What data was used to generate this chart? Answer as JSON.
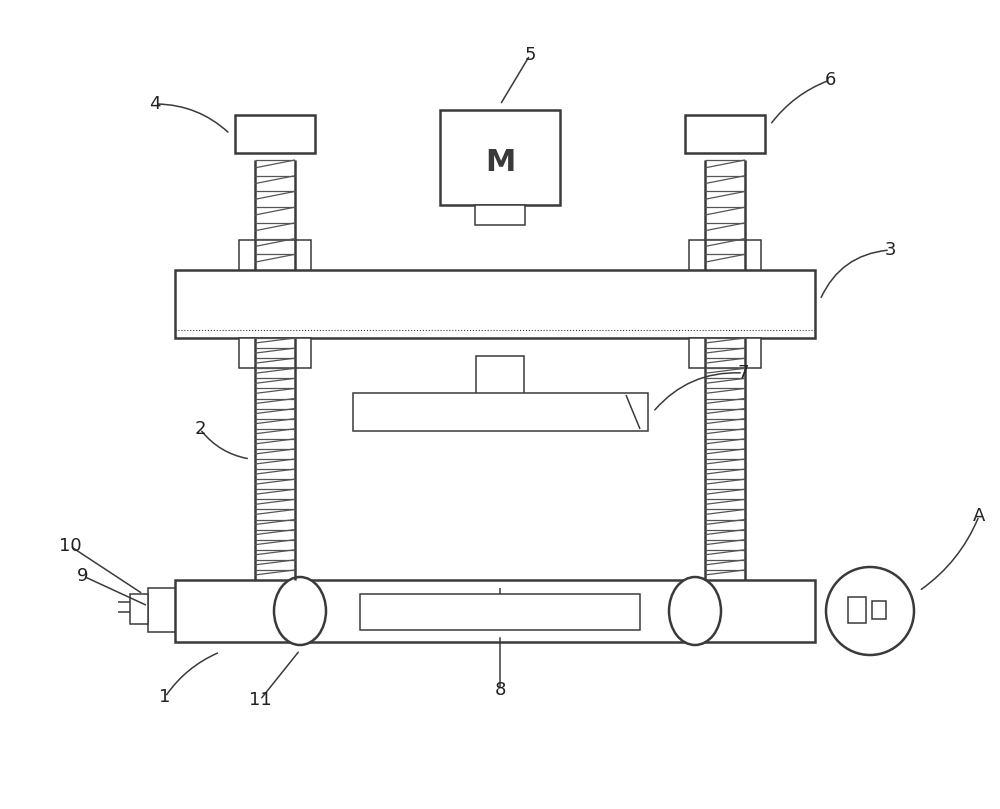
{
  "bg_color": "#ffffff",
  "line_color": "#3a3a3a",
  "lw_main": 1.8,
  "lw_thin": 1.1,
  "lw_thread": 0.9,
  "fig_w": 10.0,
  "fig_h": 8.09,
  "dpi": 100,
  "font_size": 13,
  "label_color": "#222222",
  "M_fontsize": 22,
  "thread_color": "#555555"
}
